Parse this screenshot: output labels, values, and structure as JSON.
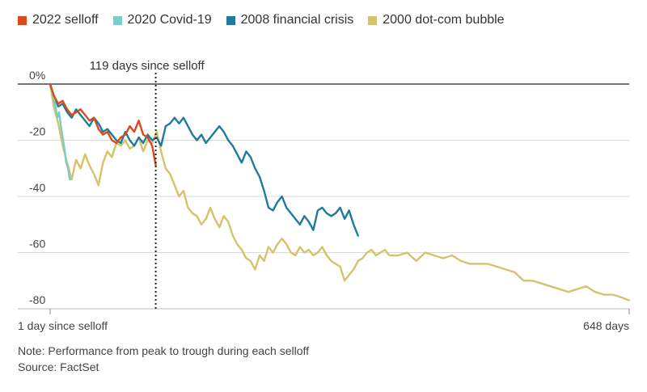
{
  "chart_data": {
    "type": "line",
    "title": "",
    "xlabel": "",
    "ylabel": "",
    "ylim": [
      -80,
      0
    ],
    "xlim": [
      1,
      648
    ],
    "y_ticks": [
      0,
      -20,
      -40,
      -60,
      -80
    ],
    "y_tick_labels": [
      "0%",
      "-20",
      "-40",
      "-60",
      "-80"
    ],
    "x_tick_labels": [
      {
        "x": 1,
        "label": "1 day since selloff",
        "anchor": "start"
      },
      {
        "x": 648,
        "label": "648 days",
        "anchor": "end"
      }
    ],
    "grid": "horizontal",
    "legend_position": "top-left",
    "annotation": {
      "x": 119,
      "label": "119 days since selloff"
    },
    "series": [
      {
        "name": "2000 dot-com bubble",
        "color": "#d4c36a",
        "x": [
          1,
          5,
          10,
          15,
          20,
          25,
          30,
          35,
          40,
          45,
          50,
          55,
          60,
          65,
          70,
          75,
          80,
          85,
          90,
          95,
          100,
          105,
          110,
          115,
          120,
          125,
          130,
          135,
          140,
          145,
          150,
          155,
          160,
          165,
          170,
          175,
          180,
          185,
          190,
          195,
          200,
          205,
          210,
          215,
          220,
          225,
          230,
          235,
          240,
          245,
          250,
          255,
          260,
          265,
          270,
          275,
          280,
          285,
          290,
          295,
          300,
          305,
          310,
          315,
          320,
          325,
          330,
          335,
          340,
          345,
          350,
          355,
          360,
          365,
          370,
          375,
          380,
          390,
          400,
          410,
          420,
          430,
          440,
          450,
          460,
          470,
          480,
          490,
          500,
          510,
          520,
          530,
          540,
          550,
          560,
          570,
          580,
          590,
          600,
          610,
          620,
          630,
          640,
          648
        ],
        "values": [
          0,
          -8,
          -14,
          -22,
          -28,
          -34,
          -27,
          -30,
          -25,
          -29,
          -32,
          -36,
          -28,
          -24,
          -26,
          -21,
          -22,
          -20,
          -23,
          -22,
          -19,
          -24,
          -20,
          -21,
          -17,
          -24,
          -30,
          -32,
          -36,
          -40,
          -38,
          -44,
          -46,
          -47,
          -50,
          -48,
          -44,
          -48,
          -51,
          -47,
          -49,
          -54,
          -57,
          -59,
          -62,
          -63,
          -66,
          -61,
          -63,
          -58,
          -60,
          -57,
          -55,
          -57,
          -60,
          -61,
          -58,
          -60,
          -59,
          -61,
          -60,
          -58,
          -61,
          -63,
          -64,
          -65,
          -70,
          -68,
          -66,
          -63,
          -62,
          -60,
          -59,
          -61,
          -60,
          -59,
          -61,
          -61,
          -60,
          -63,
          -60,
          -61,
          -62,
          -61,
          -63,
          -64,
          -64,
          -64,
          -65,
          -66,
          -67,
          -70,
          -70,
          -71,
          -72,
          -73,
          -74,
          -73,
          -72,
          -74,
          -75,
          -75,
          -76,
          -77
        ]
      },
      {
        "name": "2008 financial crisis",
        "color": "#1f7a9c",
        "x": [
          1,
          5,
          10,
          15,
          20,
          25,
          30,
          35,
          40,
          45,
          50,
          55,
          60,
          65,
          70,
          75,
          80,
          85,
          90,
          95,
          100,
          105,
          110,
          115,
          120,
          125,
          130,
          135,
          140,
          145,
          150,
          155,
          160,
          165,
          170,
          175,
          180,
          185,
          190,
          195,
          200,
          205,
          210,
          215,
          220,
          225,
          230,
          235,
          240,
          245,
          250,
          255,
          260,
          265,
          270,
          275,
          280,
          285,
          290,
          295,
          300,
          305,
          310,
          315,
          320,
          325,
          330,
          335,
          340,
          345
        ],
        "values": [
          0,
          -4,
          -8,
          -7,
          -10,
          -12,
          -9,
          -11,
          -13,
          -15,
          -12,
          -14,
          -17,
          -16,
          -18,
          -20,
          -21,
          -17,
          -20,
          -22,
          -19,
          -21,
          -18,
          -20,
          -19,
          -22,
          -15,
          -14,
          -12,
          -14,
          -12,
          -15,
          -18,
          -20,
          -18,
          -21,
          -19,
          -17,
          -15,
          -17,
          -20,
          -22,
          -25,
          -28,
          -24,
          -26,
          -30,
          -33,
          -38,
          -44,
          -45,
          -42,
          -40,
          -44,
          -46,
          -48,
          -50,
          -47,
          -49,
          -52,
          -45,
          -44,
          -46,
          -47,
          -46,
          -44,
          -48,
          -45,
          -50,
          -54
        ]
      },
      {
        "name": "2020 Covid-19",
        "color": "#7ecbc7",
        "x": [
          1,
          3,
          5,
          7,
          9,
          11,
          13,
          15,
          17,
          19,
          21,
          23
        ],
        "values": [
          0,
          -2,
          -5,
          -8,
          -12,
          -10,
          -15,
          -19,
          -23,
          -28,
          -30,
          -34
        ]
      },
      {
        "name": "2022 selloff",
        "color": "#d94a1e",
        "x": [
          1,
          5,
          10,
          15,
          20,
          25,
          30,
          35,
          40,
          45,
          50,
          55,
          60,
          65,
          70,
          75,
          80,
          85,
          90,
          95,
          100,
          105,
          110,
          115,
          119
        ],
        "values": [
          0,
          -4,
          -7,
          -6,
          -9,
          -11,
          -10,
          -9,
          -11,
          -13,
          -12,
          -16,
          -18,
          -17,
          -20,
          -21,
          -19,
          -18,
          -15,
          -17,
          -13,
          -18,
          -19,
          -22,
          -29
        ]
      }
    ]
  },
  "notes": {
    "note": "Note: Performance from peak to trough during each selloff",
    "source": "Source: FactSet"
  },
  "legend_items": [
    {
      "name": "2022 selloff",
      "color": "#d94a1e"
    },
    {
      "name": "2020 Covid-19",
      "color": "#7ecbc7"
    },
    {
      "name": "2008 financial crisis",
      "color": "#1f7a9c"
    },
    {
      "name": "2000 dot-com bubble",
      "color": "#d4c36a"
    }
  ]
}
